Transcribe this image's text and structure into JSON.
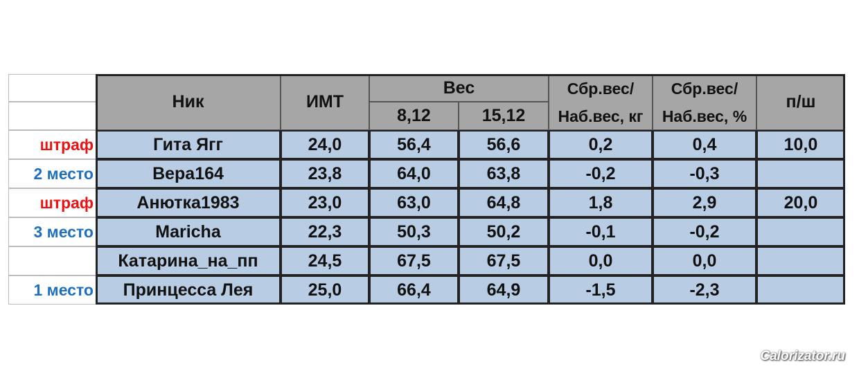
{
  "table": {
    "header": {
      "nick": "Ник",
      "bmi": "ИМТ",
      "weight": {
        "label": "Вес",
        "dates": [
          "8,12",
          "15,12"
        ]
      },
      "change_kg": [
        "Сбр.вес/",
        "Наб.вес, кг"
      ],
      "change_pct": [
        "Сбр.вес/",
        "Наб.вес, %"
      ],
      "penalty": "п/ш"
    },
    "rows": [
      {
        "status": {
          "text": "штраф",
          "color": "#ee1111"
        },
        "nick": "Гита Ягг",
        "bmi": "24,0",
        "weight": [
          "56,4",
          "56,6"
        ],
        "change_kg": "0,2",
        "change_pct": "0,4",
        "penalty": "10,0"
      },
      {
        "status": {
          "text": "2 место",
          "color": "#1f6fc0"
        },
        "nick": "Вера164",
        "bmi": "23,8",
        "weight": [
          "64,0",
          "63,8"
        ],
        "change_kg": "-0,2",
        "change_pct": "-0,3"
      },
      {
        "status": {
          "text": "штраф",
          "color": "#ee1111"
        },
        "nick": "Анютка1983",
        "bmi": "23,0",
        "weight": [
          "63,0",
          "64,8"
        ],
        "change_kg": "1,8",
        "change_pct": "2,9",
        "penalty": "20,0"
      },
      {
        "status": {
          "text": "3 место",
          "color": "#1f6fc0"
        },
        "nick": "Maricha",
        "bmi": "22,3",
        "weight": [
          "50,3",
          "50,2"
        ],
        "change_kg": "-0,1",
        "change_pct": "-0,2"
      },
      {
        "nick": "Катарина_на_пп",
        "bmi": "24,5",
        "weight": [
          "67,5",
          "67,5"
        ],
        "change_kg": "0,0",
        "change_pct": "0,0"
      },
      {
        "status": {
          "text": "1 место",
          "color": "#1f6fc0"
        },
        "nick": "Принцесса Лея",
        "bmi": "25,0",
        "weight": [
          "66,4",
          "64,9"
        ],
        "change_kg": "-1,5",
        "change_pct": "-2,3"
      }
    ]
  },
  "watermark": "Calorizator.ru"
}
